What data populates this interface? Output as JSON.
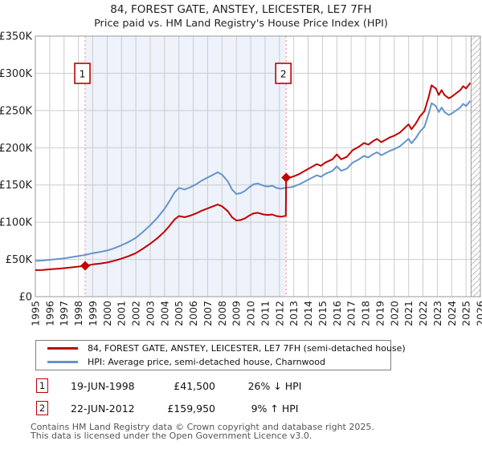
{
  "header": {
    "title": "84, FOREST GATE, ANSTEY, LEICESTER, LE7 7FH",
    "subtitle": "Price paid vs. HM Land Registry's House Price Index (HPI)"
  },
  "colors": {
    "price_line": "#c00000",
    "hpi_line": "#6694c9",
    "band": "#edf2fb",
    "grid": "#cccccc",
    "border": "#999999",
    "dashed_marker": "#ee8888",
    "marker_box_border": "#bb0000",
    "axis_text": "#222222",
    "hatch": "#bbbbbb"
  },
  "chart_data": {
    "type": "line",
    "x_range": [
      1995,
      2026
    ],
    "y_range_thousands": [
      0,
      350
    ],
    "y_tick_labels": [
      "£0",
      "£50K",
      "£100K",
      "£150K",
      "£200K",
      "£250K",
      "£300K",
      "£350K"
    ],
    "y_tick_values_thousands": [
      0,
      50,
      100,
      150,
      200,
      250,
      300,
      350
    ],
    "x_tick_labels": [
      1995,
      1996,
      1997,
      1998,
      1999,
      2000,
      2001,
      2002,
      2003,
      2004,
      2005,
      2006,
      2007,
      2008,
      2009,
      2010,
      2011,
      2012,
      2013,
      2014,
      2015,
      2016,
      2017,
      2018,
      2019,
      2020,
      2021,
      2022,
      2023,
      2024,
      2025,
      2026
    ],
    "shaded_band_x": [
      1998.47,
      2012.47
    ],
    "hatch_start_x": 2025.35,
    "sale_markers": [
      {
        "label": "1",
        "x": 1998.47,
        "y_thousands": 41.5
      },
      {
        "label": "2",
        "x": 2012.47,
        "y_thousands": 159.95
      }
    ],
    "series": [
      {
        "name": "hpi",
        "legend": "HPI: Average price, semi-detached house, Charnwood",
        "color": "#6694c9",
        "points": [
          [
            1995.0,
            48.0
          ],
          [
            1995.5,
            48.5
          ],
          [
            1996.0,
            49.5
          ],
          [
            1996.5,
            50.5
          ],
          [
            1997.0,
            51.5
          ],
          [
            1997.5,
            53.0
          ],
          [
            1998.0,
            54.5
          ],
          [
            1998.47,
            56.0
          ],
          [
            1999.0,
            58.5
          ],
          [
            1999.5,
            60.0
          ],
          [
            2000.0,
            62.0
          ],
          [
            2000.5,
            65.0
          ],
          [
            2001.0,
            69.0
          ],
          [
            2001.5,
            73.5
          ],
          [
            2002.0,
            79.0
          ],
          [
            2002.5,
            87.0
          ],
          [
            2003.0,
            96.0
          ],
          [
            2003.5,
            106.0
          ],
          [
            2004.0,
            118.0
          ],
          [
            2004.3,
            127.0
          ],
          [
            2004.7,
            140.0
          ],
          [
            2005.0,
            146.0
          ],
          [
            2005.4,
            144.0
          ],
          [
            2005.8,
            147.0
          ],
          [
            2006.2,
            151.0
          ],
          [
            2006.6,
            156.0
          ],
          [
            2007.0,
            160.0
          ],
          [
            2007.4,
            164.0
          ],
          [
            2007.7,
            167.0
          ],
          [
            2008.0,
            164.0
          ],
          [
            2008.4,
            155.0
          ],
          [
            2008.7,
            144.0
          ],
          [
            2009.0,
            138.0
          ],
          [
            2009.3,
            139.0
          ],
          [
            2009.6,
            142.0
          ],
          [
            2009.9,
            147.0
          ],
          [
            2010.2,
            151.0
          ],
          [
            2010.5,
            152.0
          ],
          [
            2010.9,
            149.0
          ],
          [
            2011.2,
            148.0
          ],
          [
            2011.5,
            149.0
          ],
          [
            2011.8,
            146.0
          ],
          [
            2012.1,
            145.0
          ],
          [
            2012.47,
            146.5
          ],
          [
            2012.8,
            147.0
          ],
          [
            2013.0,
            148.0
          ],
          [
            2013.4,
            151.0
          ],
          [
            2013.7,
            154.0
          ],
          [
            2014.0,
            157.0
          ],
          [
            2014.3,
            160.0
          ],
          [
            2014.6,
            163.0
          ],
          [
            2014.9,
            161.0
          ],
          [
            2015.2,
            165.0
          ],
          [
            2015.7,
            169.0
          ],
          [
            2016.0,
            175.0
          ],
          [
            2016.3,
            169.0
          ],
          [
            2016.7,
            172.0
          ],
          [
            2017.1,
            180.0
          ],
          [
            2017.5,
            184.0
          ],
          [
            2017.9,
            189.0
          ],
          [
            2018.2,
            187.0
          ],
          [
            2018.5,
            191.0
          ],
          [
            2018.8,
            194.0
          ],
          [
            2019.1,
            190.0
          ],
          [
            2019.4,
            193.0
          ],
          [
            2019.7,
            196.0
          ],
          [
            2020.0,
            198.0
          ],
          [
            2020.4,
            202.0
          ],
          [
            2020.7,
            207.0
          ],
          [
            2021.0,
            212.0
          ],
          [
            2021.2,
            206.0
          ],
          [
            2021.5,
            213.0
          ],
          [
            2021.8,
            222.0
          ],
          [
            2022.1,
            228.0
          ],
          [
            2022.4,
            246.0
          ],
          [
            2022.6,
            260.0
          ],
          [
            2022.9,
            256.0
          ],
          [
            2023.1,
            248.0
          ],
          [
            2023.3,
            254.0
          ],
          [
            2023.5,
            248.0
          ],
          [
            2023.8,
            244.0
          ],
          [
            2024.0,
            246.0
          ],
          [
            2024.3,
            250.0
          ],
          [
            2024.6,
            254.0
          ],
          [
            2024.8,
            259.0
          ],
          [
            2025.0,
            256.0
          ],
          [
            2025.3,
            263.0
          ]
        ]
      },
      {
        "name": "price_paid",
        "legend": "84, FOREST GATE, ANSTEY, LEICESTER, LE7 7FH (semi-detached house)",
        "color": "#c00000",
        "points": [
          [
            1995.0,
            35.6
          ],
          [
            1995.5,
            35.9
          ],
          [
            1996.0,
            36.7
          ],
          [
            1996.5,
            37.4
          ],
          [
            1997.0,
            38.2
          ],
          [
            1997.5,
            39.3
          ],
          [
            1998.0,
            40.4
          ],
          [
            1998.47,
            41.5
          ],
          [
            1999.0,
            43.3
          ],
          [
            1999.5,
            44.5
          ],
          [
            2000.0,
            45.9
          ],
          [
            2000.5,
            48.2
          ],
          [
            2001.0,
            51.1
          ],
          [
            2001.5,
            54.5
          ],
          [
            2002.0,
            58.5
          ],
          [
            2002.5,
            64.5
          ],
          [
            2003.0,
            71.1
          ],
          [
            2003.5,
            78.5
          ],
          [
            2004.0,
            87.4
          ],
          [
            2004.3,
            94.1
          ],
          [
            2004.7,
            103.7
          ],
          [
            2005.0,
            108.2
          ],
          [
            2005.4,
            106.7
          ],
          [
            2005.8,
            108.9
          ],
          [
            2006.2,
            111.9
          ],
          [
            2006.6,
            115.6
          ],
          [
            2007.0,
            118.6
          ],
          [
            2007.4,
            121.5
          ],
          [
            2007.7,
            123.7
          ],
          [
            2008.0,
            121.5
          ],
          [
            2008.4,
            114.9
          ],
          [
            2008.7,
            106.7
          ],
          [
            2009.0,
            102.3
          ],
          [
            2009.3,
            103.0
          ],
          [
            2009.6,
            105.2
          ],
          [
            2009.9,
            108.9
          ],
          [
            2010.2,
            111.9
          ],
          [
            2010.5,
            112.6
          ],
          [
            2010.9,
            110.4
          ],
          [
            2011.2,
            109.7
          ],
          [
            2011.5,
            110.4
          ],
          [
            2011.8,
            108.2
          ],
          [
            2012.1,
            107.4
          ],
          [
            2012.45,
            108.6
          ],
          [
            2012.47,
            159.95
          ],
          [
            2012.8,
            160.5
          ],
          [
            2013.0,
            161.6
          ],
          [
            2013.4,
            164.9
          ],
          [
            2013.7,
            168.2
          ],
          [
            2014.0,
            171.4
          ],
          [
            2014.3,
            174.7
          ],
          [
            2014.6,
            178.0
          ],
          [
            2014.9,
            175.8
          ],
          [
            2015.2,
            180.2
          ],
          [
            2015.7,
            184.5
          ],
          [
            2016.0,
            191.1
          ],
          [
            2016.3,
            184.5
          ],
          [
            2016.7,
            187.8
          ],
          [
            2017.1,
            196.6
          ],
          [
            2017.5,
            200.9
          ],
          [
            2017.9,
            206.4
          ],
          [
            2018.2,
            204.2
          ],
          [
            2018.5,
            208.6
          ],
          [
            2018.8,
            211.8
          ],
          [
            2019.1,
            207.5
          ],
          [
            2019.4,
            210.8
          ],
          [
            2019.7,
            214.0
          ],
          [
            2020.0,
            216.2
          ],
          [
            2020.4,
            220.6
          ],
          [
            2020.7,
            226.0
          ],
          [
            2021.0,
            231.5
          ],
          [
            2021.2,
            224.9
          ],
          [
            2021.5,
            232.6
          ],
          [
            2021.8,
            242.4
          ],
          [
            2022.1,
            249.0
          ],
          [
            2022.4,
            268.6
          ],
          [
            2022.6,
            283.9
          ],
          [
            2022.9,
            279.6
          ],
          [
            2023.1,
            270.8
          ],
          [
            2023.3,
            277.4
          ],
          [
            2023.5,
            270.8
          ],
          [
            2023.8,
            266.4
          ],
          [
            2024.0,
            268.6
          ],
          [
            2024.3,
            273.0
          ],
          [
            2024.6,
            277.4
          ],
          [
            2024.8,
            282.8
          ],
          [
            2025.0,
            279.6
          ],
          [
            2025.3,
            287.2
          ]
        ]
      }
    ]
  },
  "legend": {
    "items": [
      {
        "label": "84, FOREST GATE, ANSTEY, LEICESTER, LE7 7FH (semi-detached house)",
        "color": "#c00000"
      },
      {
        "label": "HPI: Average price, semi-detached house, Charnwood",
        "color": "#6694c9"
      }
    ]
  },
  "annotations": [
    {
      "num": "1",
      "date": "19-JUN-1998",
      "price": "£41,500",
      "hpi": "26% ↓ HPI"
    },
    {
      "num": "2",
      "date": "22-JUN-2012",
      "price": "£159,950",
      "hpi": "9% ↑ HPI"
    }
  ],
  "footer": {
    "line1": "Contains HM Land Registry data © Crown copyright and database right 2025.",
    "line2": "This data is licensed under the Open Government Licence v3.0."
  }
}
